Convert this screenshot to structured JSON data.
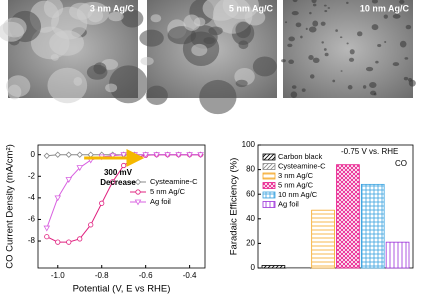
{
  "images": [
    {
      "label": "3 nm Ag/C"
    },
    {
      "label": "5 nm Ag/C"
    },
    {
      "label": "10 nm Ag/C"
    }
  ],
  "chart_data": [
    {
      "type": "line",
      "xlabel": "Potential (V, E vs RHE)",
      "ylabel": "CO Current Density (mA/cm²)",
      "x": [
        -1.05,
        -1.0,
        -0.95,
        -0.9,
        -0.85,
        -0.8,
        -0.75,
        -0.7,
        -0.65,
        -0.6,
        -0.55,
        -0.5,
        -0.45,
        -0.4,
        -0.35
      ],
      "series": [
        {
          "name": "Cysteamine-C",
          "color": "#888888",
          "marker": "diamond",
          "values": [
            -0.1,
            0,
            0,
            0,
            0,
            0,
            0,
            0,
            0,
            0,
            0,
            0,
            0,
            0,
            0
          ]
        },
        {
          "name": "5 nm Ag/C",
          "color": "#e0207f",
          "marker": "circle",
          "values": [
            -7.6,
            -8.1,
            -8.1,
            -7.8,
            -6.5,
            -4.5,
            -2.5,
            -1.0,
            -0.3,
            -0.05,
            0,
            0,
            0,
            0,
            0
          ]
        },
        {
          "name": "Ag foil",
          "color": "#d860e0",
          "marker": "triangle",
          "values": [
            -6.8,
            -4.0,
            -2.3,
            -1.2,
            -0.5,
            -0.2,
            -0.1,
            0,
            0,
            0,
            0,
            0,
            0,
            0,
            0
          ]
        }
      ],
      "annotations": [
        "300 mV",
        "Decrease"
      ],
      "xlim": [
        -1.09,
        -0.33
      ],
      "ylim": [
        -10.5,
        0.9
      ],
      "xticks": [
        {
          "value": -1,
          "label": "-1.0"
        },
        -0.8,
        -0.6,
        -0.4
      ],
      "yticks": [
        0,
        -2,
        -4,
        -6,
        -8
      ]
    },
    {
      "type": "bar",
      "ylabel": "Faradaic Efficiency (%)",
      "categories": [
        "Carbon black",
        "Cysteamine-C",
        "3 nm Ag/C",
        "5 nm Ag/C",
        "10 nm Ag/C",
        "Ag foil"
      ],
      "values": [
        2,
        0.5,
        47,
        84,
        68,
        21
      ],
      "colors": [
        "#000000",
        "#888888",
        "#f5a623",
        "#e8198b",
        "#3ba3e0",
        "#9b30d9"
      ],
      "annotations": [
        "-0.75 V vs. RHE",
        "CO"
      ],
      "ylim": [
        0,
        100
      ],
      "yticks": [
        0,
        20,
        40,
        60,
        80,
        100
      ]
    }
  ]
}
